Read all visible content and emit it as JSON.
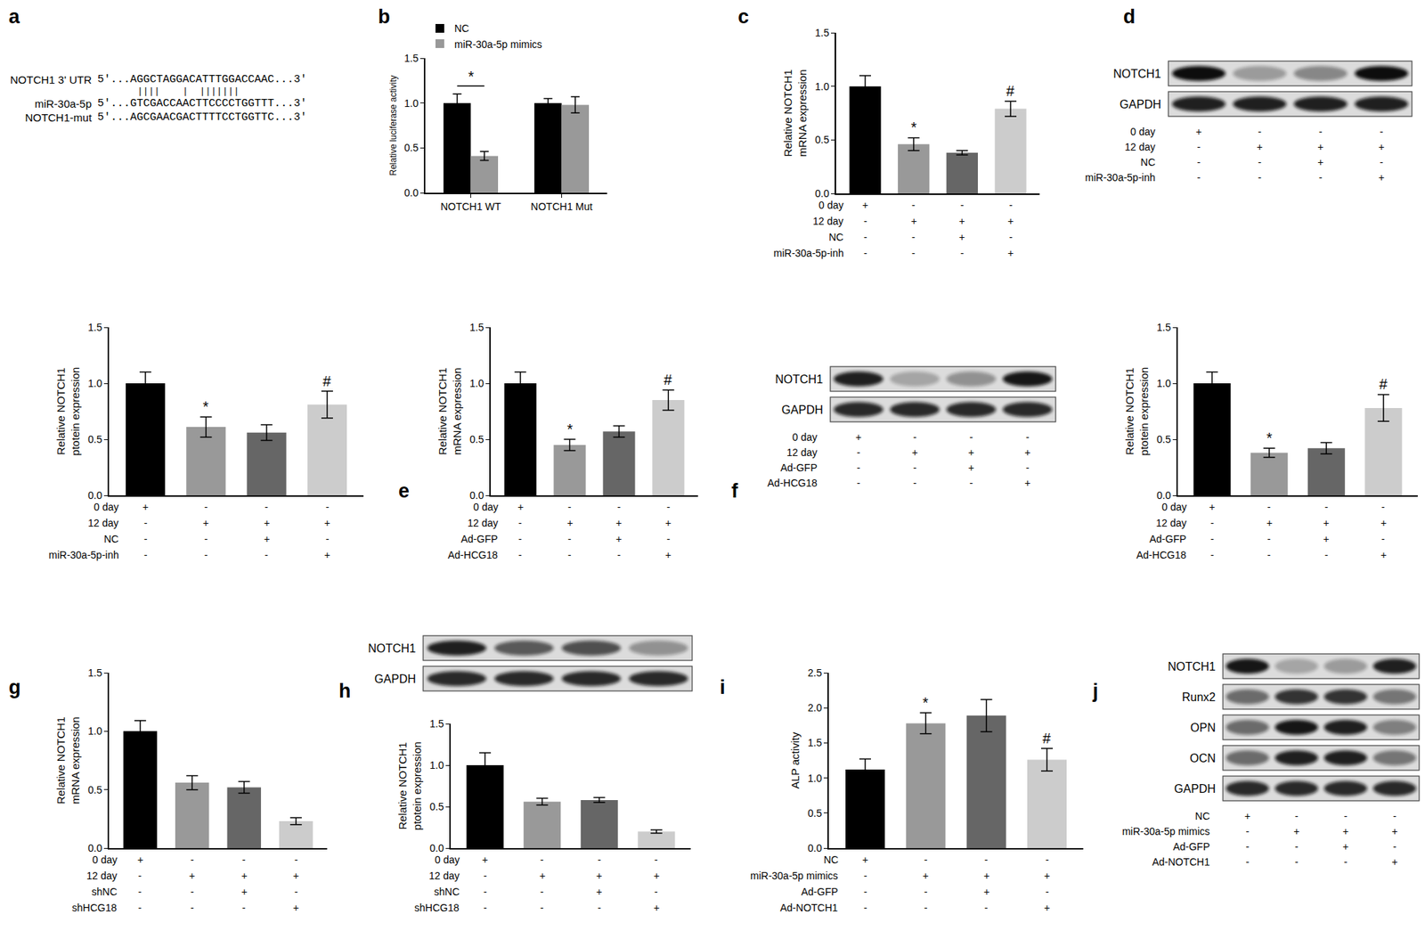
{
  "sequence": {
    "letter": "a",
    "rows": [
      {
        "label": "NOTCH1 3' UTR",
        "seq": "5'...AGGCTAGGACATTTGGACCAAC...3'"
      },
      {
        "label": "miR-30a-5p",
        "seq": "5'...GTCGACCAACTTCCCCTGGTTT...3'"
      },
      {
        "label": "NOTCH1-mut",
        "seq": "5'...AGCGAACGACTTTTCCTGGTTC...3'"
      }
    ],
    "pairing": "       ||||    |  |||||||"
  },
  "chart_data": [
    {
      "letter": "b",
      "type": "bar",
      "categories": [
        "NOTCH1 WT",
        "NOTCH1 Mut"
      ],
      "series": [
        {
          "name": "NC",
          "color": "#000000",
          "values": [
            1.0,
            1.0
          ],
          "errors": [
            0.1,
            0.05
          ]
        },
        {
          "name": "miR-30a-5p mimics",
          "color": "#999999",
          "values": [
            0.41,
            0.98
          ],
          "errors": [
            0.05,
            0.09
          ]
        }
      ],
      "y_label": "Relative luciferase activity",
      "ylim": [
        0,
        1.5
      ],
      "yticks": [
        {
          "value": 0,
          "label": "0.0"
        },
        0.5,
        {
          "value": 1,
          "label": "1.0"
        },
        1.5
      ],
      "legend": "top left",
      "grid": false,
      "significance": [
        {
          "category": "NOTCH1 WT",
          "text": "*"
        }
      ]
    },
    {
      "letter": "c",
      "type": "bar",
      "categories": [
        null,
        null,
        null,
        null
      ],
      "values": [
        1.0,
        0.46,
        0.38,
        0.79
      ],
      "errors": [
        0.1,
        0.06,
        0.02,
        0.07
      ],
      "colors": [
        "#000000",
        "#999999",
        "#666666",
        "#cccccc"
      ],
      "y_label": "Relative NOTCH1\nmRNA expression",
      "ylim": [
        0,
        1.5
      ],
      "yticks": [
        {
          "value": 0,
          "label": "0.0"
        },
        0.5,
        {
          "value": 1,
          "label": "1.0"
        },
        1.5
      ],
      "grid": false,
      "tick_labels": "y",
      "significance": [
        null,
        "*",
        null,
        "#"
      ],
      "conditions": [
        {
          "label": "0 day",
          "marks": [
            "+",
            "-",
            "-",
            "-"
          ]
        },
        {
          "label": "12 day",
          "marks": [
            "-",
            "+",
            "+",
            "+"
          ]
        },
        {
          "label": "NC",
          "marks": [
            "-",
            "-",
            "+",
            "-"
          ]
        },
        {
          "label": "miR-30a-5p-inh",
          "marks": [
            "-",
            "-",
            "-",
            "+"
          ]
        }
      ]
    },
    {
      "type": "bar",
      "categories": [
        null,
        null,
        null,
        null
      ],
      "values": [
        1.0,
        0.61,
        0.56,
        0.81
      ],
      "errors": [
        0.1,
        0.09,
        0.07,
        0.12
      ],
      "colors": [
        "#000000",
        "#999999",
        "#666666",
        "#cccccc"
      ],
      "y_label": "Relative NOTCH1\nptotein expression",
      "ylim": [
        0,
        1.5
      ],
      "yticks": [
        {
          "value": 0,
          "label": "0.0"
        },
        0.5,
        {
          "value": 1,
          "label": "1.0"
        },
        1.5
      ],
      "grid": false,
      "tick_labels": "y",
      "significance": [
        null,
        "*",
        null,
        "#"
      ],
      "conditions": [
        {
          "label": "0 day",
          "marks": [
            "+",
            "-",
            "-",
            "-"
          ]
        },
        {
          "label": "12 day",
          "marks": [
            "-",
            "+",
            "+",
            "+"
          ]
        },
        {
          "label": "NC",
          "marks": [
            "-",
            "-",
            "+",
            "-"
          ]
        },
        {
          "label": "miR-30a-5p-inh",
          "marks": [
            "-",
            "-",
            "-",
            "+"
          ]
        }
      ]
    },
    {
      "letter": "e",
      "type": "bar",
      "categories": [
        null,
        null,
        null,
        null
      ],
      "values": [
        1.0,
        0.45,
        0.57,
        0.85
      ],
      "errors": [
        0.1,
        0.05,
        0.05,
        0.09
      ],
      "colors": [
        "#000000",
        "#999999",
        "#666666",
        "#cccccc"
      ],
      "y_label": "Relative NOTCH1\nmRNA expression",
      "ylim": [
        0,
        1.5
      ],
      "yticks": [
        {
          "value": 0,
          "label": "0.0"
        },
        0.5,
        {
          "value": 1,
          "label": "1.0"
        },
        1.5
      ],
      "grid": false,
      "tick_labels": "y",
      "significance": [
        null,
        "*",
        null,
        "#"
      ],
      "conditions": [
        {
          "label": "0 day",
          "marks": [
            "+",
            "-",
            "-",
            "-"
          ]
        },
        {
          "label": "12 day",
          "marks": [
            "-",
            "+",
            "+",
            "+"
          ]
        },
        {
          "label": "Ad-GFP",
          "marks": [
            "-",
            "-",
            "+",
            "-"
          ]
        },
        {
          "label": "Ad-HCG18",
          "marks": [
            "-",
            "-",
            "-",
            "+"
          ]
        }
      ]
    },
    {
      "type": "bar",
      "categories": [
        null,
        null,
        null,
        null
      ],
      "values": [
        1.0,
        0.38,
        0.42,
        0.78
      ],
      "errors": [
        0.1,
        0.04,
        0.05,
        0.12
      ],
      "colors": [
        "#000000",
        "#999999",
        "#666666",
        "#cccccc"
      ],
      "y_label": "Relative NOTCH1\nptotein expression",
      "ylim": [
        0,
        1.5
      ],
      "yticks": [
        {
          "value": 0,
          "label": "0.0"
        },
        0.5,
        {
          "value": 1,
          "label": "1.0"
        },
        1.5
      ],
      "grid": false,
      "tick_labels": "y",
      "significance": [
        null,
        "*",
        null,
        "#"
      ],
      "conditions": [
        {
          "label": "0 day",
          "marks": [
            "+",
            "-",
            "-",
            "-"
          ]
        },
        {
          "label": "12 day",
          "marks": [
            "-",
            "+",
            "+",
            "+"
          ]
        },
        {
          "label": "Ad-GFP",
          "marks": [
            "-",
            "-",
            "+",
            "-"
          ]
        },
        {
          "label": "Ad-HCG18",
          "marks": [
            "-",
            "-",
            "-",
            "+"
          ]
        }
      ]
    },
    {
      "letter": "g",
      "type": "bar",
      "categories": [
        null,
        null,
        null,
        null
      ],
      "values": [
        1.0,
        0.56,
        0.52,
        0.23
      ],
      "errors": [
        0.09,
        0.06,
        0.05,
        0.03
      ],
      "colors": [
        "#000000",
        "#999999",
        "#666666",
        "#cccccc"
      ],
      "y_label": "Relative NOTCH1\nmRNA expression",
      "ylim": [
        0,
        1.5
      ],
      "yticks": [
        {
          "value": 0,
          "label": "0.0"
        },
        0.5,
        {
          "value": 1,
          "label": "1.0"
        },
        1.5
      ],
      "grid": false,
      "tick_labels": "y",
      "conditions": [
        {
          "label": "0 day",
          "marks": [
            "+",
            "-",
            "-",
            "-"
          ]
        },
        {
          "label": "12 day",
          "marks": [
            "-",
            "+",
            "+",
            "+"
          ]
        },
        {
          "label": "shNC",
          "marks": [
            "-",
            "-",
            "+",
            "-"
          ]
        },
        {
          "label": "shHCG18",
          "marks": [
            "-",
            "-",
            "-",
            "+"
          ]
        }
      ]
    },
    {
      "type": "bar",
      "categories": [
        null,
        null,
        null,
        null
      ],
      "values": [
        1.0,
        0.56,
        0.58,
        0.2
      ],
      "errors": [
        0.15,
        0.04,
        0.03,
        0.02
      ],
      "colors": [
        "#000000",
        "#999999",
        "#666666",
        "#cccccc"
      ],
      "y_label": "Relative NOTCH1\nptotein expression",
      "ylim": [
        0,
        1.5
      ],
      "yticks": [
        {
          "value": 0,
          "label": "0.0"
        },
        0.5,
        {
          "value": 1,
          "label": "1.0"
        },
        1.5
      ],
      "grid": false,
      "tick_labels": "y",
      "conditions": [
        {
          "label": "0 day",
          "marks": [
            "+",
            "-",
            "-",
            "-"
          ]
        },
        {
          "label": "12 day",
          "marks": [
            "-",
            "+",
            "+",
            "+"
          ]
        },
        {
          "label": "shNC",
          "marks": [
            "-",
            "-",
            "+",
            "-"
          ]
        },
        {
          "label": "shHCG18",
          "marks": [
            "-",
            "-",
            "-",
            "+"
          ]
        }
      ]
    },
    {
      "letter": "i",
      "type": "bar",
      "categories": [
        null,
        null,
        null,
        null
      ],
      "values": [
        1.12,
        1.78,
        1.89,
        1.26
      ],
      "errors": [
        0.15,
        0.15,
        0.23,
        0.16
      ],
      "colors": [
        "#000000",
        "#999999",
        "#666666",
        "#cccccc"
      ],
      "y_label": "ALP activity",
      "ylim": [
        0,
        2.5
      ],
      "yticks": [
        {
          "value": 0,
          "label": "0.0"
        },
        0.5,
        {
          "value": 1,
          "label": "1.0"
        },
        1.5,
        {
          "value": 2,
          "label": "2.0"
        },
        2.5
      ],
      "grid": false,
      "tick_labels": "y",
      "significance": [
        null,
        "*",
        null,
        "#"
      ],
      "conditions": [
        {
          "label": "NC",
          "marks": [
            "+",
            "-",
            "-",
            "-"
          ]
        },
        {
          "label": "miR-30a-5p mimics",
          "marks": [
            "-",
            "+",
            "+",
            "+"
          ]
        },
        {
          "label": "Ad-GFP",
          "marks": [
            "-",
            "-",
            "+",
            "-"
          ]
        },
        {
          "label": "Ad-NOTCH1",
          "marks": [
            "-",
            "-",
            "-",
            "+"
          ]
        }
      ]
    }
  ],
  "blots": [
    {
      "letter": "d",
      "rows": [
        {
          "label": "NOTCH1",
          "intensity": [
            1.0,
            0.25,
            0.35,
            1.0
          ]
        },
        {
          "label": "GAPDH",
          "intensity": [
            0.9,
            0.9,
            0.9,
            0.9
          ]
        }
      ],
      "conditions": [
        {
          "label": "0 day",
          "marks": [
            "+",
            "-",
            "-",
            "-"
          ]
        },
        {
          "label": "12 day",
          "marks": [
            "-",
            "+",
            "+",
            "+"
          ]
        },
        {
          "label": "NC",
          "marks": [
            "-",
            "-",
            "+",
            "-"
          ]
        },
        {
          "label": "miR-30a-5p-inh",
          "marks": [
            "-",
            "-",
            "-",
            "+"
          ]
        }
      ]
    },
    {
      "letter": "f",
      "rows": [
        {
          "label": "NOTCH1",
          "intensity": [
            0.9,
            0.2,
            0.3,
            0.95
          ]
        },
        {
          "label": "GAPDH",
          "intensity": [
            0.85,
            0.85,
            0.85,
            0.85
          ]
        }
      ],
      "conditions": [
        {
          "label": "0 day",
          "marks": [
            "+",
            "-",
            "-",
            "-"
          ]
        },
        {
          "label": "12 day",
          "marks": [
            "-",
            "+",
            "+",
            "+"
          ]
        },
        {
          "label": "Ad-GFP",
          "marks": [
            "-",
            "-",
            "+",
            "-"
          ]
        },
        {
          "label": "Ad-HCG18",
          "marks": [
            "-",
            "-",
            "-",
            "+"
          ]
        }
      ]
    },
    {
      "letter": "h",
      "rows": [
        {
          "label": "NOTCH1",
          "intensity": [
            0.9,
            0.6,
            0.65,
            0.3
          ]
        },
        {
          "label": "GAPDH",
          "intensity": [
            0.85,
            0.85,
            0.85,
            0.85
          ]
        }
      ]
    },
    {
      "letter": "j",
      "rows": [
        {
          "label": "NOTCH1",
          "intensity": [
            0.95,
            0.2,
            0.25,
            0.9
          ]
        },
        {
          "label": "Runx2",
          "intensity": [
            0.5,
            0.8,
            0.8,
            0.45
          ]
        },
        {
          "label": "OPN",
          "intensity": [
            0.5,
            0.95,
            0.9,
            0.4
          ]
        },
        {
          "label": "OCN",
          "intensity": [
            0.5,
            0.9,
            0.9,
            0.45
          ]
        },
        {
          "label": "GAPDH",
          "intensity": [
            0.85,
            0.85,
            0.85,
            0.85
          ]
        }
      ],
      "conditions": [
        {
          "label": "NC",
          "marks": [
            "+",
            "-",
            "-",
            "-"
          ]
        },
        {
          "label": "miR-30a-5p mimics",
          "marks": [
            "-",
            "+",
            "+",
            "+"
          ]
        },
        {
          "label": "Ad-GFP",
          "marks": [
            "-",
            "-",
            "+",
            "-"
          ]
        },
        {
          "label": "Ad-NOTCH1",
          "marks": [
            "-",
            "-",
            "-",
            "+"
          ]
        }
      ]
    }
  ]
}
